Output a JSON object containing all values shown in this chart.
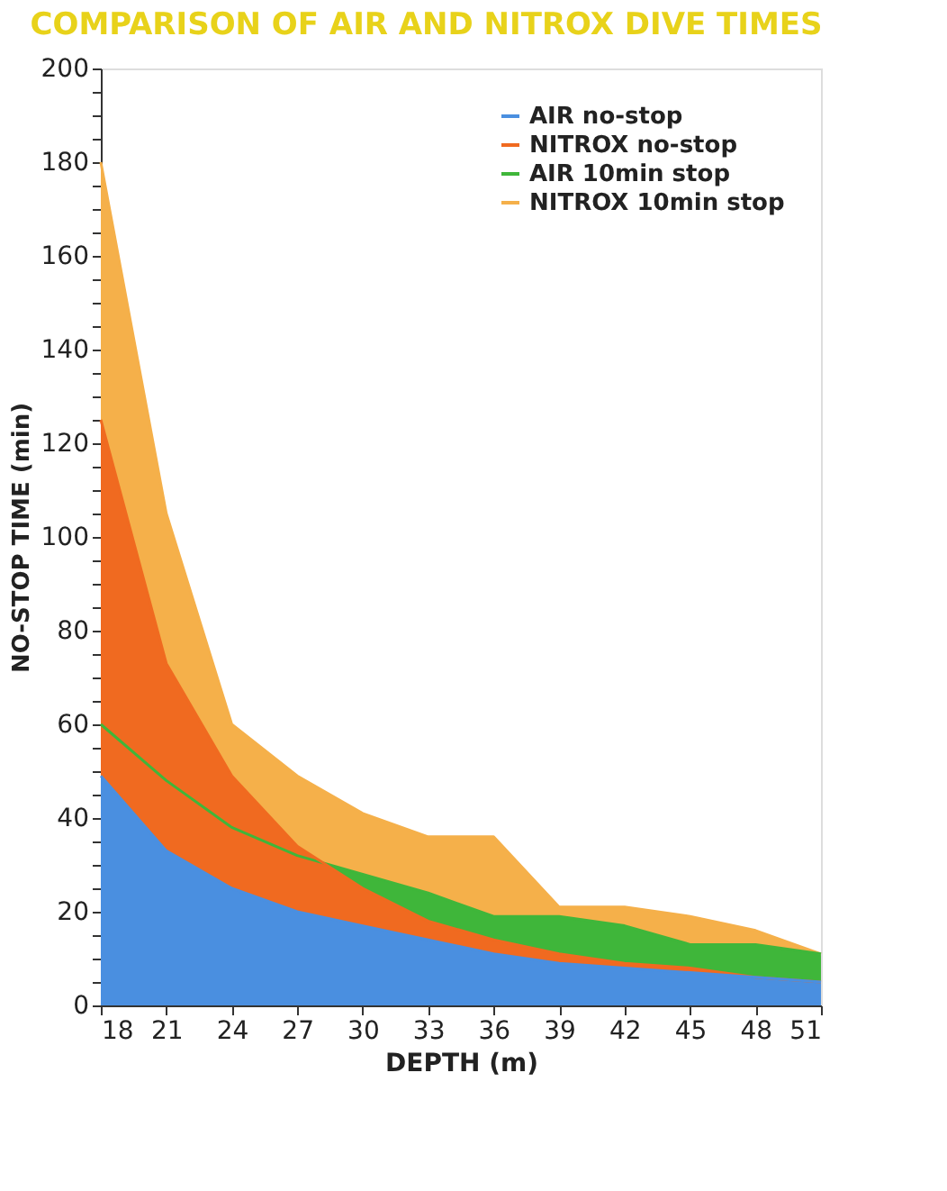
{
  "chart_data": {
    "type": "area",
    "title": "COMPARISON OF AIR AND NITROX DIVE TIMES",
    "xlabel": "DEPTH (m)",
    "ylabel": "NO-STOP TIME (min)",
    "x": [
      18,
      21,
      24,
      27,
      30,
      33,
      36,
      39,
      42,
      45,
      48,
      51
    ],
    "series": [
      {
        "name": "AIR no-stop",
        "color": "#4a8fe0",
        "values": [
          49,
          33,
          25,
          20,
          17,
          14,
          11,
          9,
          8,
          7,
          6,
          5
        ]
      },
      {
        "name": "NITROX no-stop",
        "color": "#f06a20",
        "values": [
          125,
          73,
          49,
          34,
          25,
          18,
          14,
          11,
          9,
          8,
          6,
          5
        ]
      },
      {
        "name": "AIR 10min stop",
        "color": "#3fb63a",
        "values": [
          60,
          48,
          38,
          32,
          28,
          24,
          19,
          19,
          17,
          13,
          13,
          11
        ]
      },
      {
        "name": "NITROX 10min stop",
        "color": "#f5b04a",
        "values": [
          180,
          105,
          60,
          49,
          41,
          36,
          36,
          21,
          21,
          19,
          16,
          11
        ]
      }
    ],
    "xlim": [
      18,
      51
    ],
    "xticks": [
      18,
      21,
      24,
      27,
      30,
      33,
      36,
      39,
      42,
      45,
      48,
      51
    ],
    "ylim": [
      0,
      200
    ],
    "yticks": [
      0,
      {
        "value": 5,
        "label": null
      },
      {
        "value": 10,
        "label": null
      },
      {
        "value": 15,
        "label": null
      },
      20,
      {
        "value": 25,
        "label": null
      },
      {
        "value": 30,
        "label": null
      },
      {
        "value": 35,
        "label": null
      },
      40,
      {
        "value": 45,
        "label": null
      },
      {
        "value": 50,
        "label": null
      },
      {
        "value": 55,
        "label": null
      },
      60,
      {
        "value": 65,
        "label": null
      },
      {
        "value": 70,
        "label": null
      },
      {
        "value": 75,
        "label": null
      },
      80,
      {
        "value": 85,
        "label": null
      },
      {
        "value": 90,
        "label": null
      },
      {
        "value": 95,
        "label": null
      },
      100,
      {
        "value": 105,
        "label": null
      },
      {
        "value": 110,
        "label": null
      },
      {
        "value": 115,
        "label": null
      },
      120,
      {
        "value": 125,
        "label": null
      },
      {
        "value": 130,
        "label": null
      },
      {
        "value": 135,
        "label": null
      },
      140,
      {
        "value": 145,
        "label": null
      },
      {
        "value": 150,
        "label": null
      },
      {
        "value": 155,
        "label": null
      },
      160,
      {
        "value": 165,
        "label": null
      },
      {
        "value": 170,
        "label": null
      },
      {
        "value": 175,
        "label": null
      },
      180,
      {
        "value": 185,
        "label": null
      },
      {
        "value": 190,
        "label": null
      },
      {
        "value": 195,
        "label": null
      },
      200
    ],
    "grid": false,
    "legend": "top right"
  }
}
